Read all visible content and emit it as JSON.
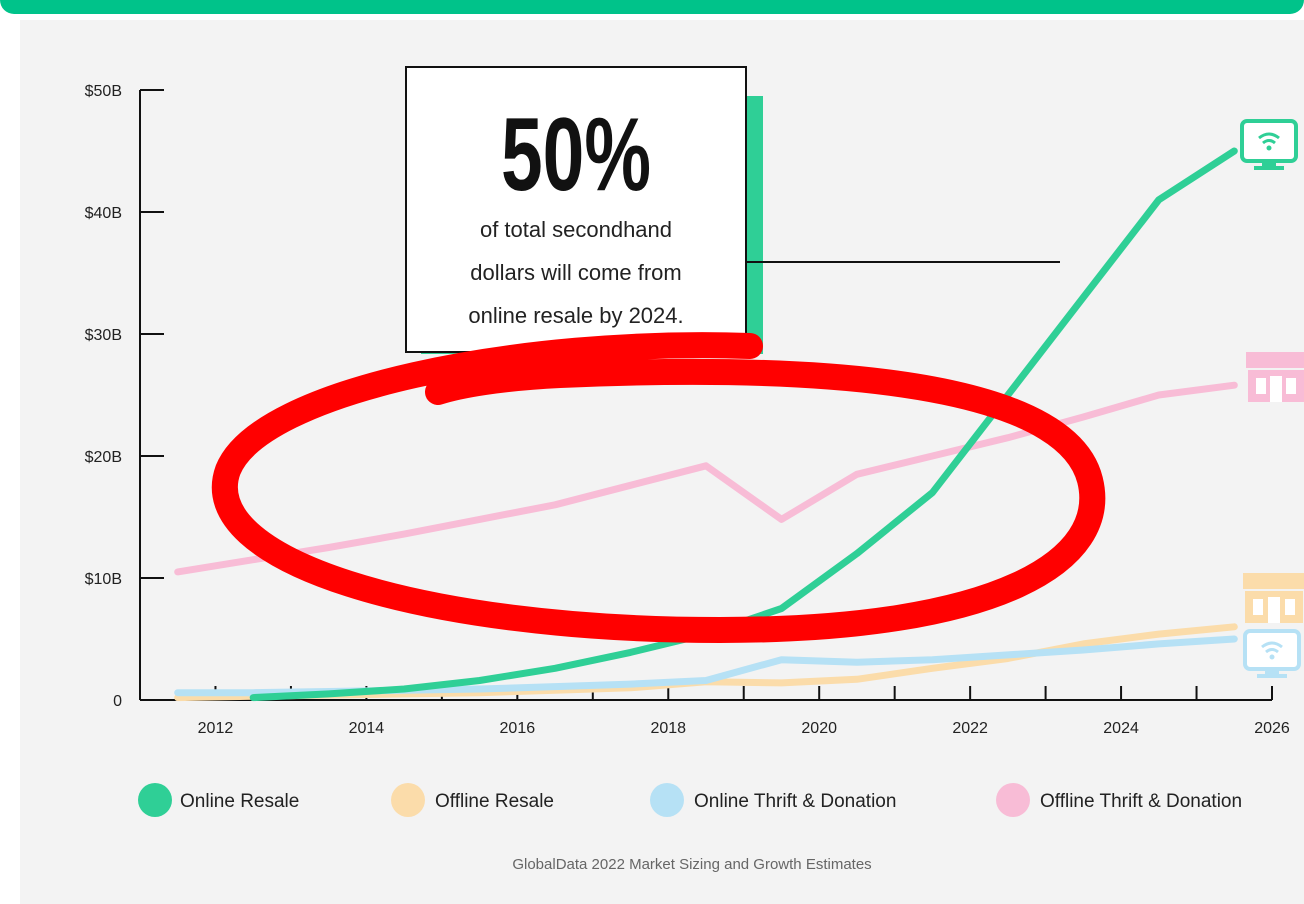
{
  "callout": {
    "big": "50%",
    "lines": [
      "of total secondhand",
      "dollars will come from",
      "online resale by 2024."
    ]
  },
  "source": "GlobalData 2022 Market Sizing and Growth Estimates",
  "colors": {
    "online_resale": "#2fcf96",
    "offline_resale": "#fbdcaa",
    "online_thrift": "#b6e1f5",
    "offline_thrift": "#f8bcd6",
    "accent": "#00c38a",
    "annotation": "#ff0000"
  },
  "icons": {
    "online_resale": "monitor-wifi-icon",
    "offline_thrift": "storefront-icon",
    "offline_resale": "storefront-icon",
    "online_thrift": "monitor-wifi-icon"
  },
  "chart_data": {
    "type": "line",
    "x_ticks": [
      "2012",
      "2014",
      "2016",
      "2018",
      "2020",
      "2022",
      "2024",
      "2026"
    ],
    "y_ticks": [
      "0",
      "$10B",
      "$20B",
      "$30B",
      "$40B",
      "$50B"
    ],
    "ylim": [
      0,
      50
    ],
    "xlim": [
      2011,
      2026
    ],
    "grid": false,
    "legend_position": "bottom",
    "series": [
      {
        "name": "Online Resale",
        "color": "#2fcf96",
        "x": [
          2012.5,
          2013.5,
          2014.5,
          2015.5,
          2016.5,
          2017.5,
          2018.5,
          2019.5,
          2020.5,
          2021.5,
          2022.5,
          2023.5,
          2024.5,
          2025.5
        ],
        "y": [
          0.2,
          0.5,
          0.9,
          1.6,
          2.6,
          3.9,
          5.4,
          7.5,
          12.0,
          17.0,
          25.0,
          33.0,
          41.0,
          45.0
        ]
      },
      {
        "name": "Offline Resale",
        "color": "#fbdcaa",
        "x": [
          2011.5,
          2012.5,
          2013.5,
          2014.5,
          2015.5,
          2016.5,
          2017.5,
          2018.5,
          2019.5,
          2020.5,
          2021.5,
          2022.5,
          2023.5,
          2024.5,
          2025.5
        ],
        "y": [
          0.2,
          0.3,
          0.4,
          0.5,
          0.6,
          0.8,
          1.0,
          1.5,
          1.4,
          1.7,
          2.6,
          3.4,
          4.6,
          5.4,
          6.0
        ]
      },
      {
        "name": "Online Thrift & Donation",
        "color": "#b6e1f5",
        "x": [
          2011.5,
          2012.5,
          2013.5,
          2014.5,
          2015.5,
          2016.5,
          2017.5,
          2018.5,
          2019.5,
          2020.5,
          2021.5,
          2022.5,
          2023.5,
          2024.5,
          2025.5
        ],
        "y": [
          0.6,
          0.6,
          0.7,
          0.8,
          0.9,
          1.1,
          1.3,
          1.6,
          3.3,
          3.1,
          3.3,
          3.7,
          4.1,
          4.6,
          5.0
        ]
      },
      {
        "name": "Offline Thrift & Donation",
        "color": "#f8bcd6",
        "x": [
          2011.5,
          2012.5,
          2013.5,
          2014.5,
          2015.5,
          2016.5,
          2017.5,
          2018.5,
          2019.5,
          2020.5,
          2021.5,
          2022.5,
          2023.5,
          2024.5,
          2025.5
        ],
        "y": [
          10.5,
          11.5,
          12.5,
          13.6,
          14.8,
          16.0,
          17.6,
          19.2,
          14.8,
          18.5,
          20.0,
          21.5,
          23.2,
          25.0,
          25.8
        ]
      }
    ]
  }
}
